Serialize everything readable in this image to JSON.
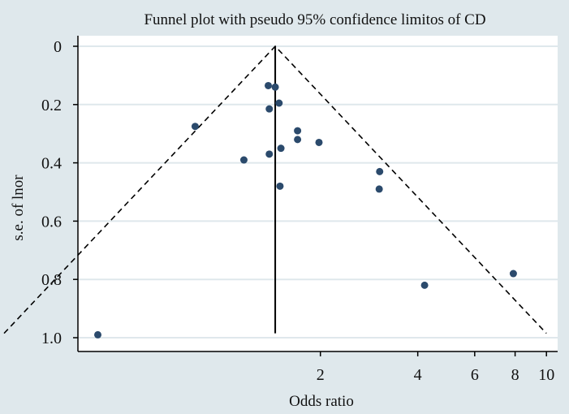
{
  "chart_data": {
    "type": "scatter",
    "title": "Funnel plot with pseudo 95% confidence limitos of CD",
    "xlabel": "Odds ratio",
    "ylabel": "s.e. of lnor",
    "x_scale": "log",
    "y_reversed": true,
    "xlim": [
      0.36,
      10.4
    ],
    "ylim": [
      0,
      1.0
    ],
    "x_ticks": [
      2,
      4,
      6,
      8,
      10
    ],
    "y_ticks": [
      0,
      0.2,
      0.4,
      0.6,
      0.8,
      1.0
    ],
    "y_tick_labels": [
      "0",
      "0.2",
      "0.4",
      "0.6",
      "0.8",
      "1.0"
    ],
    "grid": "horizontal",
    "pooled_or": 1.45,
    "series": [
      {
        "points": [
          {
            "x": 1.38,
            "y": 0.135
          },
          {
            "x": 1.45,
            "y": 0.14
          },
          {
            "x": 1.49,
            "y": 0.195
          },
          {
            "x": 1.39,
            "y": 0.215
          },
          {
            "x": 0.82,
            "y": 0.275
          },
          {
            "x": 1.7,
            "y": 0.29
          },
          {
            "x": 1.7,
            "y": 0.32
          },
          {
            "x": 1.98,
            "y": 0.33
          },
          {
            "x": 1.51,
            "y": 0.35
          },
          {
            "x": 1.39,
            "y": 0.37
          },
          {
            "x": 1.16,
            "y": 0.39
          },
          {
            "x": 3.05,
            "y": 0.43
          },
          {
            "x": 1.5,
            "y": 0.48
          },
          {
            "x": 3.04,
            "y": 0.49
          },
          {
            "x": 7.9,
            "y": 0.78
          },
          {
            "x": 4.2,
            "y": 0.82
          },
          {
            "x": 0.41,
            "y": 0.99
          }
        ]
      }
    ]
  },
  "colors": {
    "background": "#dfe8ec",
    "plot_background": "#ffffff",
    "grid": "#dfe8ec",
    "marker": "#2b4a6c",
    "lines": "#000000"
  }
}
